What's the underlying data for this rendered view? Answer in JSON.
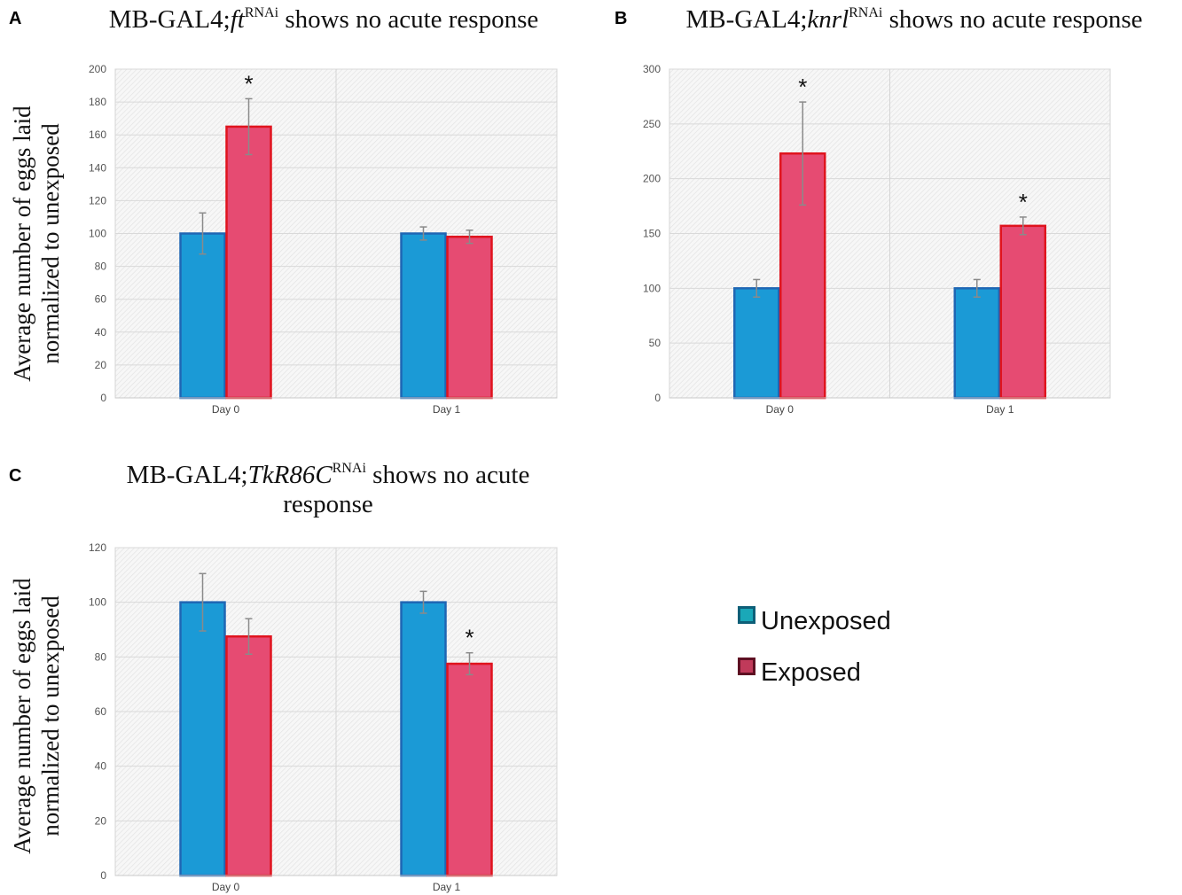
{
  "panels": [
    {
      "letter": "A",
      "title_pre": "MB-GAL4;",
      "title_gene": "ft",
      "title_sup": "RNAi",
      "title_post": " shows no acute response"
    },
    {
      "letter": "B",
      "title_pre": "MB-GAL4;",
      "title_gene": "knrl",
      "title_sup": "RNAi",
      "title_post": " shows no acute response"
    },
    {
      "letter": "C",
      "title_pre": "MB-GAL4;",
      "title_gene": "TkR86C",
      "title_sup": "RNAi",
      "title_post": " shows no acute response"
    }
  ],
  "ylabel_line1": "Average number of eggs laid",
  "ylabel_line2": "normalized to unexposed",
  "legend": {
    "unexposed": "Unexposed",
    "exposed": "Exposed"
  },
  "colors": {
    "unexposed_fill": "#1b9ad6",
    "unexposed_edge": "#1f66b4",
    "exposed_fill": "#e64b72",
    "exposed_edge": "#e0141e",
    "legend_unexposed_fill": "#1aa8b8",
    "legend_unexposed_edge": "#0e5f78",
    "legend_exposed_fill": "#c03a5a",
    "legend_exposed_edge": "#5e0f22"
  },
  "chart_data": [
    {
      "type": "bar",
      "categories": [
        "Day 0",
        "Day 1"
      ],
      "series": [
        {
          "name": "Unexposed",
          "values": [
            100,
            100
          ],
          "errors": [
            12.5,
            4
          ]
        },
        {
          "name": "Exposed",
          "values": [
            165,
            98
          ],
          "errors": [
            17,
            4
          ]
        }
      ],
      "ylim": [
        0,
        200
      ],
      "yticks": [
        0,
        20,
        40,
        60,
        80,
        100,
        120,
        140,
        160,
        180,
        200
      ],
      "significance": [
        {
          "category": "Day 0",
          "series": "Exposed",
          "label": "*"
        }
      ],
      "grid": true
    },
    {
      "type": "bar",
      "categories": [
        "Day 0",
        "Day 1"
      ],
      "series": [
        {
          "name": "Unexposed",
          "values": [
            100,
            100
          ],
          "errors": [
            8,
            8
          ]
        },
        {
          "name": "Exposed",
          "values": [
            223,
            157
          ],
          "errors": [
            47,
            8
          ]
        }
      ],
      "ylim": [
        0,
        300
      ],
      "yticks": [
        0,
        50,
        100,
        150,
        200,
        250,
        300
      ],
      "significance": [
        {
          "category": "Day 0",
          "series": "Exposed",
          "label": "*"
        },
        {
          "category": "Day 1",
          "series": "Exposed",
          "label": "*"
        }
      ],
      "grid": true
    },
    {
      "type": "bar",
      "categories": [
        "Day 0",
        "Day 1"
      ],
      "series": [
        {
          "name": "Unexposed",
          "values": [
            100,
            100
          ],
          "errors": [
            10.5,
            4
          ]
        },
        {
          "name": "Exposed",
          "values": [
            87.5,
            77.5
          ],
          "errors": [
            6.5,
            4
          ]
        }
      ],
      "ylim": [
        0,
        120
      ],
      "yticks": [
        0,
        20,
        40,
        60,
        80,
        100,
        120
      ],
      "significance": [
        {
          "category": "Day 1",
          "series": "Exposed",
          "label": "*"
        }
      ],
      "grid": true
    }
  ]
}
